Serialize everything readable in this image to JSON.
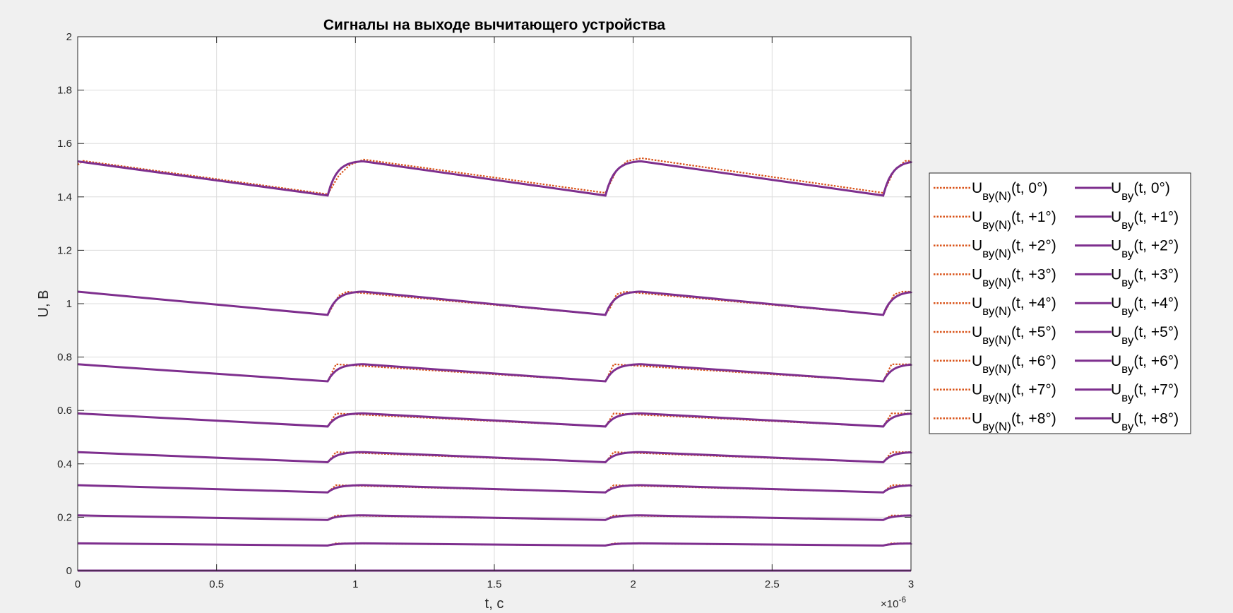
{
  "chart_data": {
    "type": "line",
    "title": "Сигналы на выходе вычитающего устройства",
    "xlabel": "t, c",
    "ylabel": "U, B",
    "x_exponent_label": "×10",
    "x_exponent_power": "-6",
    "xlim": [
      0,
      3
    ],
    "ylim": [
      0,
      2
    ],
    "xticks": [
      0,
      0.5,
      1,
      1.5,
      2,
      2.5,
      3
    ],
    "xtick_labels": [
      "0",
      "0.5",
      "1",
      "1.5",
      "2",
      "2.5",
      "3"
    ],
    "yticks": [
      0,
      0.2,
      0.4,
      0.6,
      0.8,
      1,
      1.2,
      1.4,
      1.6,
      1.8,
      2
    ],
    "ytick_labels": [
      "0",
      "0.2",
      "0.4",
      "0.6",
      "0.8",
      "1",
      "1.2",
      "1.4",
      "1.6",
      "1.8",
      "2"
    ],
    "grid": true,
    "legend_position": "right",
    "legend_columns": 2,
    "colors": {
      "dotted": "#d95319",
      "solid": "#7e2f8e"
    },
    "series": [
      {
        "name": "0°",
        "high": 0,
        "low": 0
      },
      {
        "name": "+1°",
        "high": 0.102,
        "low": 0.094
      },
      {
        "name": "+2°",
        "high": 0.207,
        "low": 0.19
      },
      {
        "name": "+3°",
        "high": 0.32,
        "low": 0.293
      },
      {
        "name": "+4°",
        "high": 0.444,
        "low": 0.406
      },
      {
        "name": "+5°",
        "high": 0.589,
        "low": 0.54
      },
      {
        "name": "+6°",
        "high": 0.773,
        "low": 0.709
      },
      {
        "name": "+7°",
        "high": 1.045,
        "low": 0.958
      },
      {
        "name": "+8°",
        "high": 1.533,
        "low": 1.405
      }
    ],
    "dotted_series": [
      {
        "name": "+8°",
        "points": [
          [
            0,
            1.52
          ],
          [
            0.02,
            1.535
          ],
          [
            0.9,
            1.41
          ],
          [
            0.94,
            1.48
          ],
          [
            0.98,
            1.52
          ],
          [
            1.03,
            1.54
          ],
          [
            1.9,
            1.415
          ],
          [
            1.94,
            1.5
          ],
          [
            1.98,
            1.535
          ],
          [
            2.03,
            1.545
          ],
          [
            2.9,
            1.415
          ],
          [
            2.94,
            1.5
          ],
          [
            2.98,
            1.535
          ],
          [
            3,
            1.535
          ]
        ]
      },
      {
        "name": "+7°",
        "points": [
          [
            0,
            1.045
          ],
          [
            0.9,
            0.958
          ],
          [
            0.94,
            1.03
          ],
          [
            0.97,
            1.045
          ],
          [
            1.9,
            0.958
          ],
          [
            1.92,
            0.99
          ],
          [
            1.94,
            1.035
          ],
          [
            1.97,
            1.045
          ],
          [
            2.9,
            0.958
          ],
          [
            2.94,
            1.035
          ],
          [
            2.97,
            1.045
          ],
          [
            3,
            1.045
          ]
        ]
      }
    ],
    "legend": {
      "dotted_main": "U",
      "dotted_sub": "ву(N)",
      "solid_main": "U",
      "solid_sub": "ву",
      "arg_prefix": "(t, ",
      "arg_suffix": ")"
    }
  }
}
